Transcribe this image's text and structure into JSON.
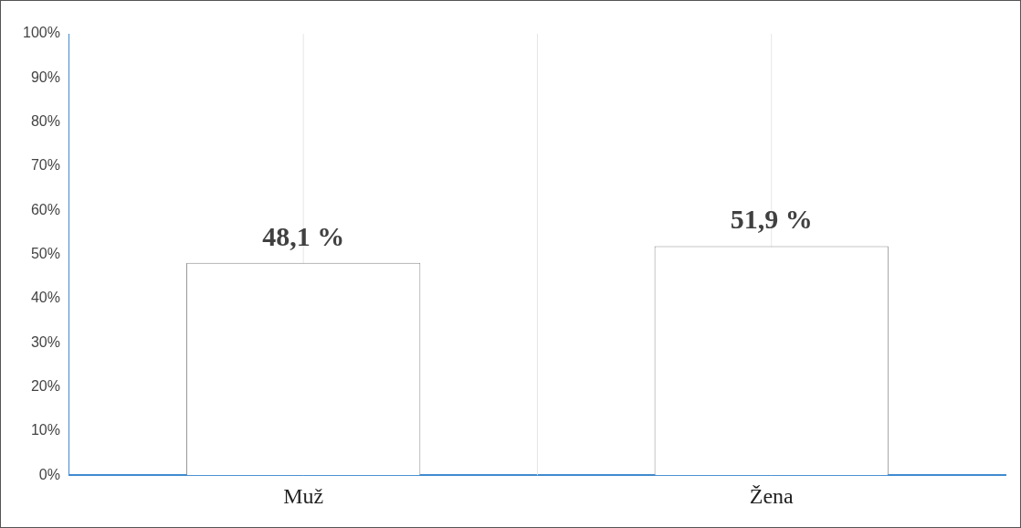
{
  "chart_data": {
    "type": "bar",
    "categories": [
      "Muž",
      "Žena"
    ],
    "series": [
      {
        "color": "#ffffff",
        "values": [
          48.1,
          51.9
        ],
        "value_labels": [
          "48,1 %",
          "51,9 %"
        ]
      }
    ],
    "ylim": [
      0,
      100
    ],
    "yticks": [
      {
        "value": 0,
        "label": "0%"
      },
      {
        "value": 10,
        "label": "10%"
      },
      {
        "value": 20,
        "label": "20%"
      },
      {
        "value": 30,
        "label": "30%"
      },
      {
        "value": 40,
        "label": "40%"
      },
      {
        "value": 50,
        "label": "50%"
      },
      {
        "value": 60,
        "label": "60%"
      },
      {
        "value": 70,
        "label": "70%"
      },
      {
        "value": 80,
        "label": "80%"
      },
      {
        "value": 90,
        "label": "90%"
      },
      {
        "value": 100,
        "label": "100%"
      }
    ],
    "grid": "x",
    "legend": false
  }
}
